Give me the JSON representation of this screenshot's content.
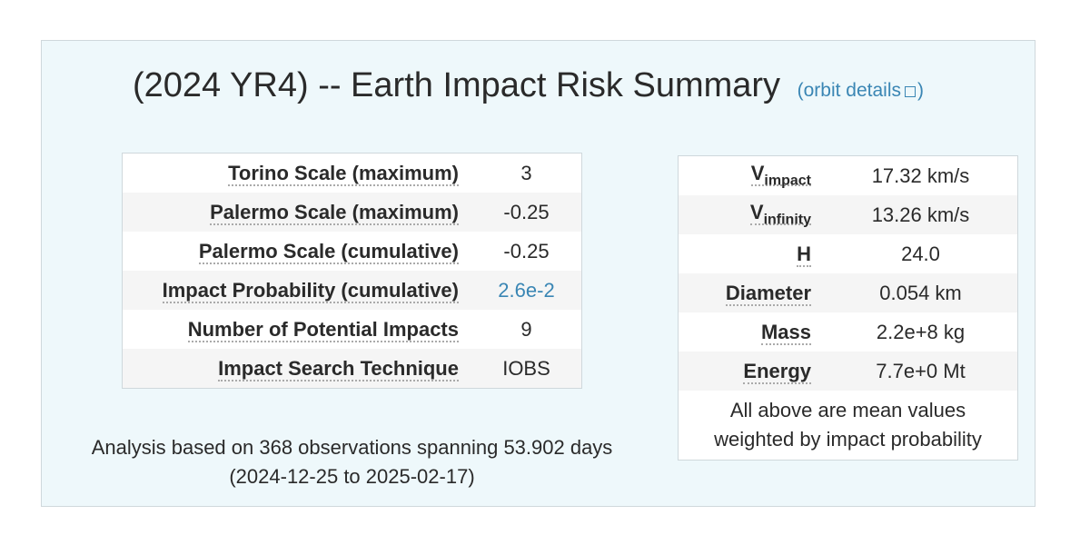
{
  "header": {
    "title": "(2024 YR4) -- Earth Impact Risk Summary",
    "link_open": "(",
    "link_text": "orbit details",
    "link_close": ")"
  },
  "risk_table": {
    "rows": [
      [
        "Torino Scale (maximum)",
        "3"
      ],
      [
        "Palermo Scale (maximum)",
        "-0.25"
      ],
      [
        "Palermo Scale (cumulative)",
        "-0.25"
      ],
      [
        "Impact Probability (cumulative)",
        "2.6e-2"
      ],
      [
        "Number of Potential Impacts",
        "9"
      ],
      [
        "Impact Search Technique",
        "IOBS"
      ]
    ]
  },
  "physical_table": {
    "rows": [
      {
        "label": "V",
        "sub": "impact",
        "value": "17.32 km/s"
      },
      {
        "label": "V",
        "sub": "infinity",
        "value": "13.26 km/s"
      },
      {
        "label": "H",
        "value": "24.0"
      },
      {
        "label": "Diameter",
        "value": "0.054 km"
      },
      {
        "label": "Mass",
        "value": "2.2e+8 kg"
      },
      {
        "label": "Energy",
        "value": "7.7e+0 Mt"
      }
    ],
    "note": [
      "All above are mean values",
      "weighted by impact probability"
    ]
  },
  "analysis": [
    "Analysis based on 368 observations spanning 53.902 days",
    "(2024-12-25 to 2025-02-17)"
  ]
}
